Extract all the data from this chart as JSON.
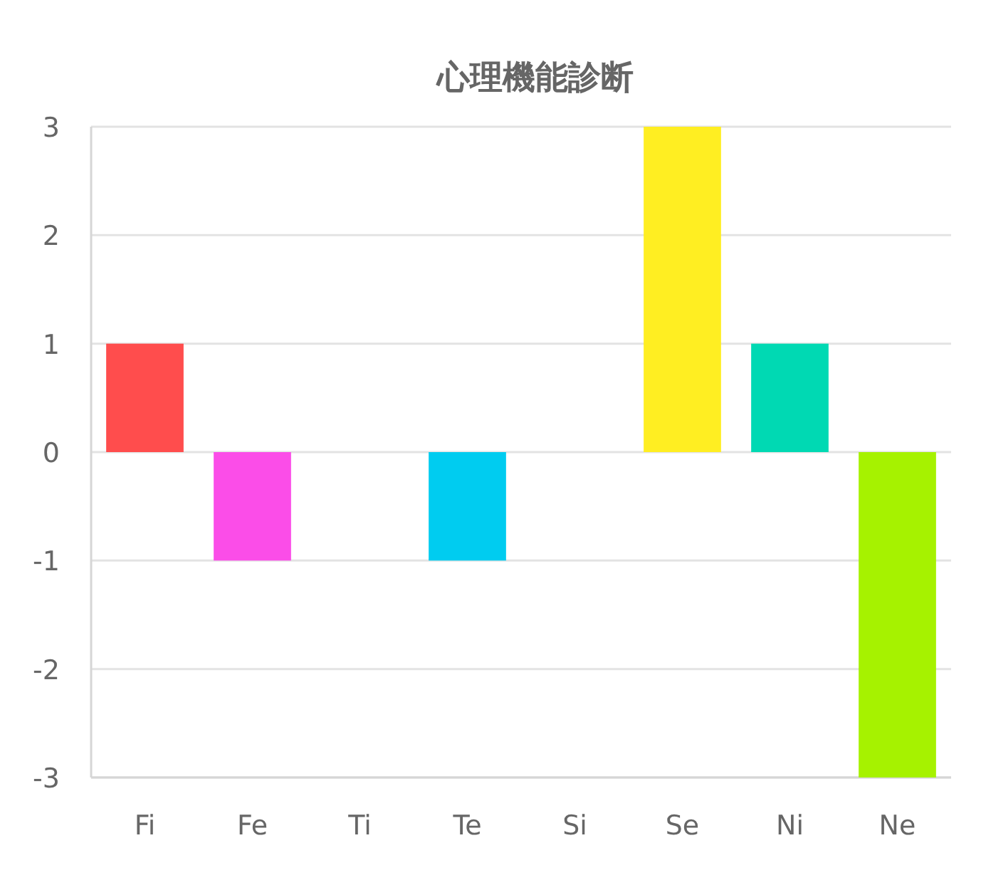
{
  "chart_data": {
    "type": "bar",
    "title": "心理機能診断",
    "categories": [
      "Fi",
      "Fe",
      "Ti",
      "Te",
      "Si",
      "Se",
      "Ni",
      "Ne"
    ],
    "values": [
      1,
      -1,
      0,
      -1,
      0,
      3,
      1,
      -3
    ],
    "colors": [
      "#ff4d4d",
      "#fb4de8",
      null,
      "#00ccf0",
      null,
      "#ffee22",
      "#00d9b3",
      "#a6f200"
    ],
    "ylim": [
      -3,
      3
    ],
    "yticks": [
      -3,
      -2,
      -1,
      0,
      1,
      2,
      3
    ],
    "grid": "y"
  }
}
